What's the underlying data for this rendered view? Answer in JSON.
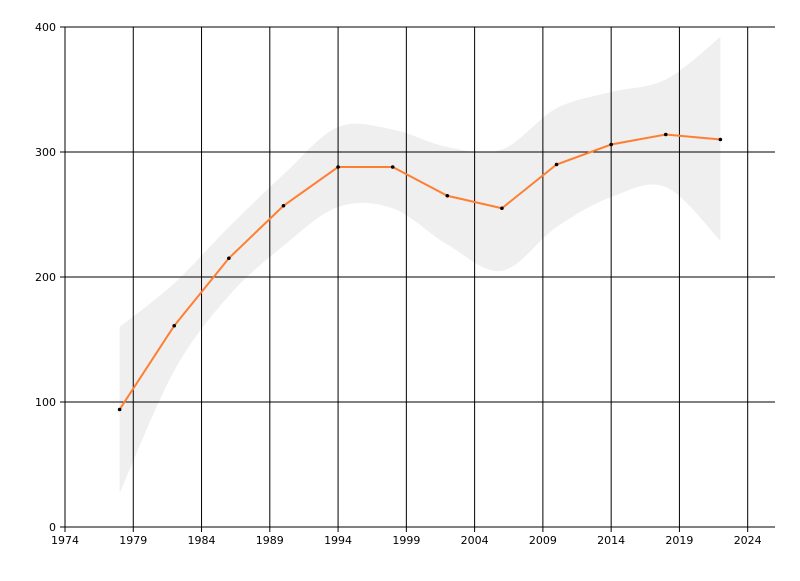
{
  "chart_data": {
    "type": "line",
    "title": "",
    "xlabel": "",
    "ylabel": "",
    "xlim": [
      1974,
      2026
    ],
    "ylim": [
      0,
      400
    ],
    "x_ticks": [
      1974,
      1979,
      1984,
      1989,
      1994,
      1999,
      2004,
      2009,
      2014,
      2019,
      2024
    ],
    "y_ticks": [
      0,
      100,
      200,
      300,
      400
    ],
    "grid": true,
    "legend": "none",
    "colors": {
      "line": "#ff7f32",
      "band": "#efefef",
      "grid": "#000000",
      "marker": "#000000"
    },
    "series": [
      {
        "x": [
          1978,
          1982,
          1986,
          1990,
          1994,
          1998,
          2002,
          2006,
          2010,
          2014,
          2018,
          2022
        ],
        "values": [
          94,
          161,
          215,
          257,
          288,
          288,
          265,
          255,
          290,
          306,
          314,
          310
        ],
        "upper": [
          160,
          195,
          240,
          282,
          320,
          318,
          304,
          302,
          335,
          348,
          358,
          392
        ],
        "lower": [
          27,
          125,
          185,
          225,
          256,
          255,
          226,
          205,
          240,
          264,
          272,
          229
        ]
      }
    ]
  }
}
